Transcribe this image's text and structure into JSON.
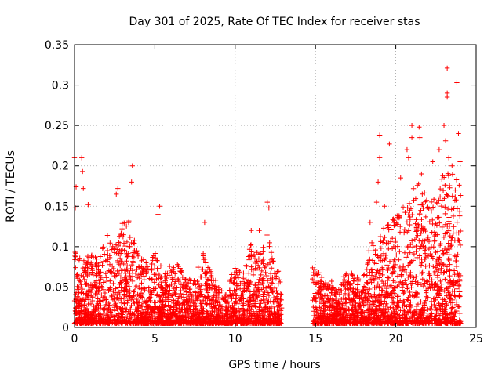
{
  "chart_data": {
    "type": "scatter",
    "title": "Day 301 of 2025, Rate Of TEC Index for receiver stas",
    "xlabel": "GPS time / hours",
    "ylabel": "ROTI / TECUs",
    "xlim": [
      0,
      25
    ],
    "ylim": [
      0,
      0.35
    ],
    "xticks": [
      0,
      5,
      10,
      15,
      20,
      25
    ],
    "yticks": [
      0,
      0.05,
      0.1,
      0.15,
      0.2,
      0.25,
      0.3,
      0.35
    ],
    "grid": true,
    "marker": "+",
    "color": "#ff0000",
    "series": [
      {
        "name": "ROTI",
        "envelope_x": [
          0,
          0.5,
          1,
          1.5,
          2,
          2.5,
          3,
          3.5,
          4,
          4.5,
          5,
          5.5,
          6,
          6.5,
          7,
          7.5,
          8,
          8.5,
          9,
          9.5,
          10,
          10.5,
          11,
          11.5,
          12,
          12.5,
          12.9,
          14.8,
          15.5,
          16,
          16.5,
          17,
          17.5,
          18,
          18.5,
          19,
          19.5,
          20,
          20.5,
          21,
          21.5,
          22,
          22.5,
          23,
          23.5,
          24
        ],
        "envelope_y": [
          0.1,
          0.085,
          0.09,
          0.09,
          0.12,
          0.1,
          0.15,
          0.13,
          0.09,
          0.08,
          0.1,
          0.07,
          0.08,
          0.08,
          0.06,
          0.06,
          0.1,
          0.07,
          0.05,
          0.05,
          0.08,
          0.07,
          0.11,
          0.09,
          0.12,
          0.07,
          0.07,
          0.08,
          0.06,
          0.06,
          0.05,
          0.08,
          0.06,
          0.07,
          0.11,
          0.12,
          0.13,
          0.14,
          0.15,
          0.17,
          0.18,
          0.16,
          0.16,
          0.2,
          0.19,
          0.19
        ],
        "outliers": [
          [
            0.0,
            0.21
          ],
          [
            0.1,
            0.174
          ],
          [
            0.45,
            0.21
          ],
          [
            0.5,
            0.193
          ],
          [
            0.55,
            0.172
          ],
          [
            0.05,
            0.148
          ],
          [
            0.85,
            0.152
          ],
          [
            2.6,
            0.165
          ],
          [
            2.7,
            0.172
          ],
          [
            3.6,
            0.2
          ],
          [
            3.55,
            0.18
          ],
          [
            5.3,
            0.15
          ],
          [
            5.2,
            0.14
          ],
          [
            8.1,
            0.13
          ],
          [
            11.0,
            0.12
          ],
          [
            11.5,
            0.12
          ],
          [
            12.0,
            0.155
          ],
          [
            12.1,
            0.148
          ],
          [
            18.4,
            0.13
          ],
          [
            18.8,
            0.155
          ],
          [
            18.9,
            0.18
          ],
          [
            19.0,
            0.21
          ],
          [
            19.0,
            0.238
          ],
          [
            19.6,
            0.227
          ],
          [
            19.3,
            0.15
          ],
          [
            20.3,
            0.185
          ],
          [
            20.7,
            0.22
          ],
          [
            20.8,
            0.21
          ],
          [
            21.0,
            0.25
          ],
          [
            21.0,
            0.235
          ],
          [
            21.45,
            0.248
          ],
          [
            21.5,
            0.235
          ],
          [
            21.6,
            0.19
          ],
          [
            22.3,
            0.205
          ],
          [
            22.7,
            0.22
          ],
          [
            23.0,
            0.25
          ],
          [
            23.1,
            0.231
          ],
          [
            23.2,
            0.321
          ],
          [
            23.2,
            0.29
          ],
          [
            23.2,
            0.285
          ],
          [
            23.3,
            0.21
          ],
          [
            23.8,
            0.303
          ],
          [
            23.9,
            0.24
          ],
          [
            24.0,
            0.205
          ],
          [
            23.5,
            0.2
          ],
          [
            23.7,
            0.17
          ]
        ],
        "gap": [
          12.9,
          14.8
        ],
        "baseline_min": 0.005,
        "point_count": 4200
      }
    ]
  }
}
